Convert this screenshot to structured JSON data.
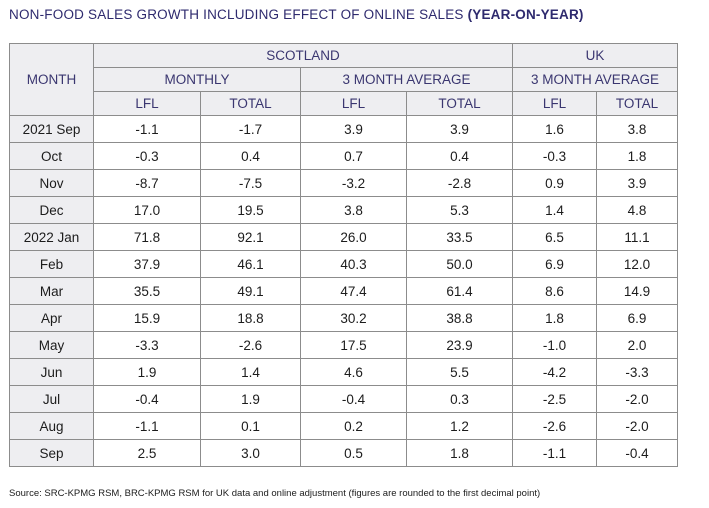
{
  "title": {
    "main": "NON-FOOD SALES GROWTH INCLUDING EFFECT OF ONLINE SALES",
    "suffix": "(YEAR-ON-YEAR)"
  },
  "headers": {
    "month": "MONTH",
    "scotland": "SCOTLAND",
    "uk": "UK",
    "monthly": "MONTHLY",
    "three_month_avg_scotland": "3 MONTH AVERAGE",
    "three_month_avg_uk": "3 MONTH AVERAGE",
    "lfl": "LFL",
    "total": "TOTAL"
  },
  "rows": [
    {
      "month": "2021 Sep",
      "values": [
        "-1.1",
        "-1.7",
        "3.9",
        "3.9",
        "1.6",
        "3.8"
      ]
    },
    {
      "month": "Oct",
      "values": [
        "-0.3",
        "0.4",
        "0.7",
        "0.4",
        "-0.3",
        "1.8"
      ]
    },
    {
      "month": "Nov",
      "values": [
        "-8.7",
        "-7.5",
        "-3.2",
        "-2.8",
        "0.9",
        "3.9"
      ]
    },
    {
      "month": "Dec",
      "values": [
        "17.0",
        "19.5",
        "3.8",
        "5.3",
        "1.4",
        "4.8"
      ]
    },
    {
      "month": "2022 Jan",
      "values": [
        "71.8",
        "92.1",
        "26.0",
        "33.5",
        "6.5",
        "11.1"
      ]
    },
    {
      "month": "Feb",
      "values": [
        "37.9",
        "46.1",
        "40.3",
        "50.0",
        "6.9",
        "12.0"
      ]
    },
    {
      "month": "Mar",
      "values": [
        "35.5",
        "49.1",
        "47.4",
        "61.4",
        "8.6",
        "14.9"
      ]
    },
    {
      "month": "Apr",
      "values": [
        "15.9",
        "18.8",
        "30.2",
        "38.8",
        "1.8",
        "6.9"
      ]
    },
    {
      "month": "May",
      "values": [
        "-3.3",
        "-2.6",
        "17.5",
        "23.9",
        "-1.0",
        "2.0"
      ]
    },
    {
      "month": "Jun",
      "values": [
        "1.9",
        "1.4",
        "4.6",
        "5.5",
        "-4.2",
        "-3.3"
      ]
    },
    {
      "month": "Jul",
      "values": [
        "-0.4",
        "1.9",
        "-0.4",
        "0.3",
        "-2.5",
        "-2.0"
      ]
    },
    {
      "month": "Aug",
      "values": [
        "-1.1",
        "0.1",
        "0.2",
        "1.2",
        "-2.6",
        "-2.0"
      ]
    },
    {
      "month": "Sep",
      "values": [
        "2.5",
        "3.0",
        "0.5",
        "1.8",
        "-1.1",
        "-0.4"
      ]
    }
  ],
  "source": "Source: SRC-KPMG RSM, BRC-KPMG RSM for UK data and online adjustment (figures are rounded to the first decimal point)",
  "colors": {
    "title_text": "#2e2a6e",
    "header_text": "#3a3670",
    "header_background": "#eeeef1",
    "border": "#8c8c8c"
  }
}
